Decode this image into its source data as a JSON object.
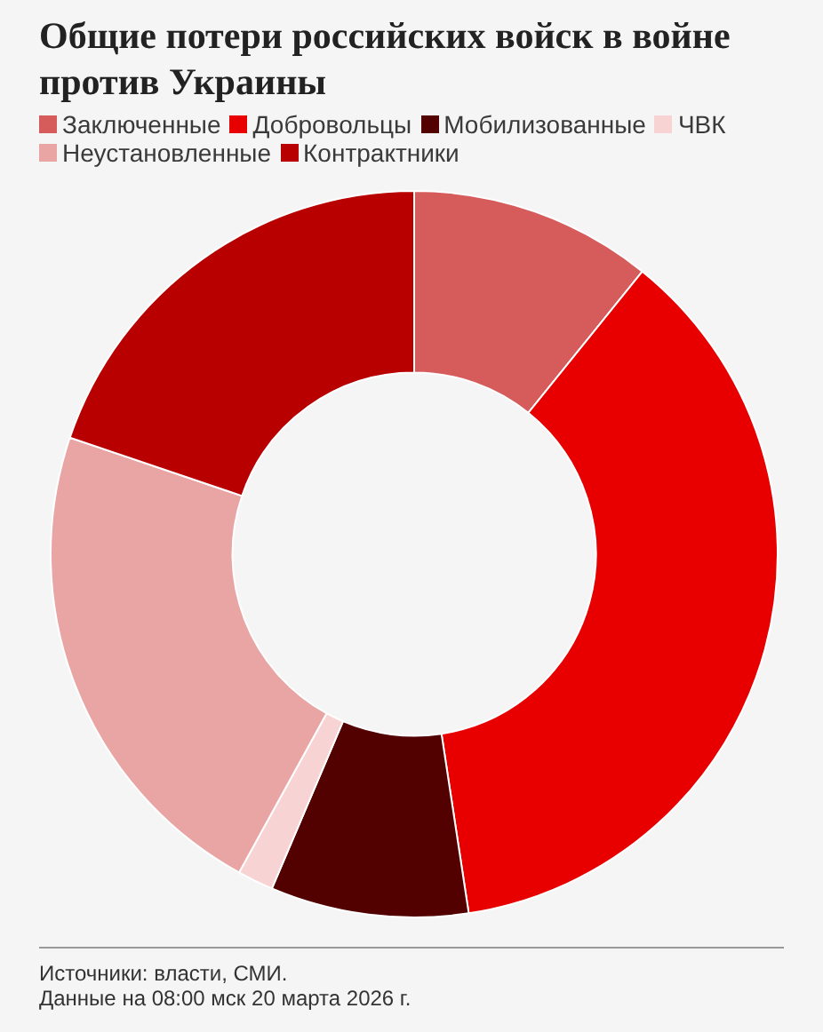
{
  "chart_data": {
    "type": "donut",
    "title": "Общие потери российских войск в войне против Украины",
    "categories": [
      "Заключенные",
      "Добровольцы",
      "Мобилизованные",
      "ЧВК",
      "Неустановленные",
      "Контрактники"
    ],
    "values": [
      10.8,
      36.8,
      8.8,
      1.6,
      22.2,
      19.8
    ],
    "colors": [
      "#d55c5a",
      "#e80000",
      "#520000",
      "#f8d3d3",
      "#e9a4a4",
      "#b80000"
    ],
    "legend": "top",
    "annotations": [
      "Источники: власти, СМИ.",
      "Данные на 08:00 мск 20 марта 2026 г."
    ]
  }
}
